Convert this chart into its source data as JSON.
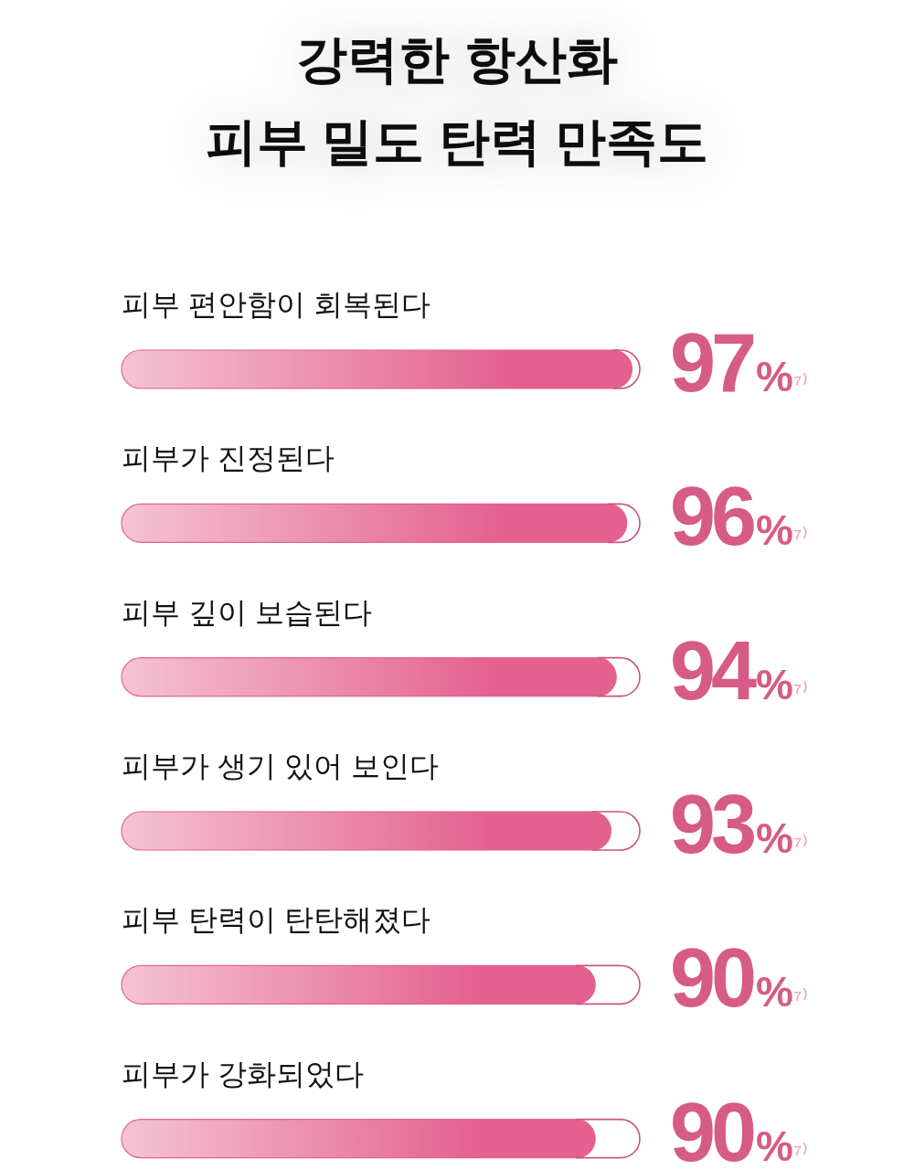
{
  "chart_data": {
    "type": "bar",
    "orientation": "horizontal",
    "title": "강력한 항산화\n피부 밀도 탄력 만족도",
    "categories": [
      "피부 편안함이 회복된다",
      "피부가 진정된다",
      "피부 깊이 보습된다",
      "피부가 생기 있어 보인다",
      "피부 탄력이 탄탄해졌다",
      "피부가 강화되었다"
    ],
    "values": [
      97,
      96,
      94,
      93,
      90,
      90
    ],
    "value_labels": [
      "97%⁷⁾",
      "96%⁷⁾",
      "94%⁷⁾",
      "93%⁷⁾",
      "90%⁷⁾",
      "90%⁷⁾"
    ],
    "color": "#e4618f",
    "tick_labels": "y"
  }
}
